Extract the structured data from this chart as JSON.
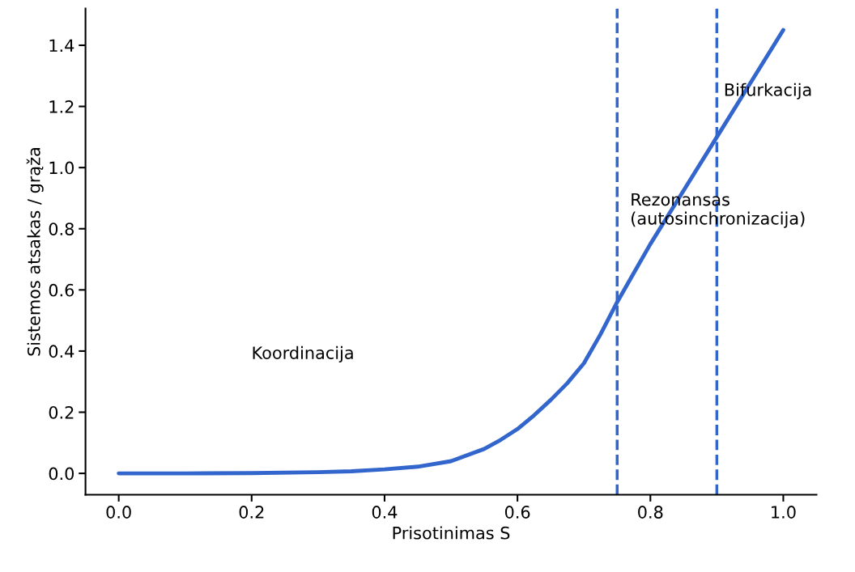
{
  "chart_data": {
    "type": "line",
    "xlabel": "Prisotinimas S",
    "ylabel": "Sistemos atsakas / grąža",
    "x": [
      0.0,
      0.1,
      0.2,
      0.3,
      0.35,
      0.4,
      0.45,
      0.5,
      0.55,
      0.575,
      0.6,
      0.625,
      0.65,
      0.675,
      0.7,
      0.725,
      0.75,
      0.775,
      0.8,
      0.85,
      0.9,
      0.95,
      1.0
    ],
    "series": [
      {
        "color": "#3366cc",
        "values": [
          0.0,
          0.0,
          0.001,
          0.004,
          0.007,
          0.013,
          0.022,
          0.04,
          0.08,
          0.11,
          0.145,
          0.19,
          0.24,
          0.295,
          0.36,
          0.455,
          0.56,
          0.655,
          0.75,
          0.925,
          1.1,
          1.275,
          1.45
        ]
      }
    ],
    "xlim": [
      -0.05,
      1.05
    ],
    "ylim": [
      -0.07,
      1.52
    ],
    "xticks": [
      {
        "value": 0,
        "label": "0.0"
      },
      0.2,
      0.4,
      0.6,
      0.8,
      {
        "value": 1,
        "label": "1.0"
      }
    ],
    "yticks": [
      {
        "value": 0,
        "label": "0.0"
      },
      0.2,
      0.4,
      0.6,
      0.8,
      {
        "value": 1,
        "label": "1.0"
      },
      1.2,
      1.4
    ],
    "ref_lines": [
      {
        "axis": "x",
        "value": 0.75,
        "color": "#3366cc",
        "line_style": "dashed"
      },
      {
        "axis": "x",
        "value": 0.9,
        "color": "#3366cc",
        "line_style": "dashed"
      }
    ],
    "annotations": [
      "Koordinacija",
      "Rezonansas\n(autosinchronizacija)",
      "Bifurkacija"
    ],
    "grid": false,
    "legend": false,
    "marker": "none",
    "line_style": "solid"
  }
}
